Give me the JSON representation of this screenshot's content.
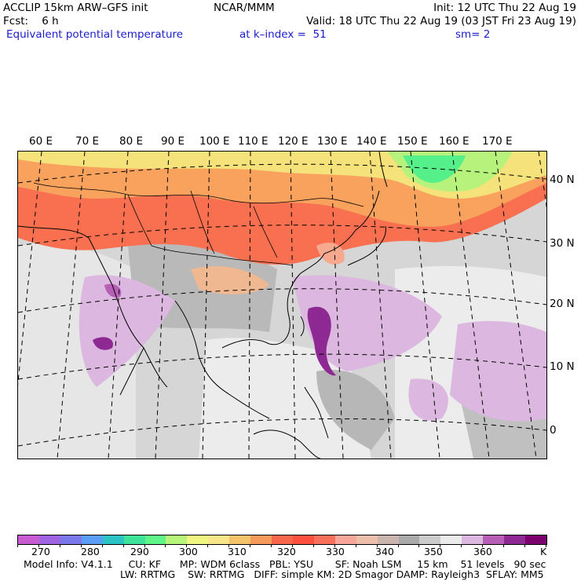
{
  "header": {
    "line1_left": "ACCLIP 15km ARW–GFS init",
    "line1_center": "NCAR/MMM",
    "line1_right": "Init: 12 UTC Thu 22 Aug 19",
    "line2_left": "Fcst:    6 h",
    "line2_right": "Valid: 18 UTC Thu 22 Aug 19 (03 JST Fri 23 Aug 19)",
    "line3_left": "Equivalent potential temperature",
    "line3_center": "at k–index =  51",
    "line3_right": "sm= 2"
  },
  "map": {
    "lon_labels": [
      "60 E",
      "70 E",
      "80 E",
      "90 E",
      "100 E",
      "110 E",
      "120 E",
      "130 E",
      "140 E",
      "150 E",
      "160 E",
      "170 E"
    ],
    "lat_labels": [
      "40 N",
      "30 N",
      "20 N",
      "10 N",
      "0"
    ]
  },
  "colorbar": {
    "colors": [
      "#c85ad2",
      "#a064e1",
      "#7a78ea",
      "#5a9df5",
      "#2bc3c3",
      "#3ee39a",
      "#5ff588",
      "#b6f57a",
      "#f1f582",
      "#f9e58a",
      "#f6c36d",
      "#f59a5a",
      "#f7664a",
      "#ff5040",
      "#f8705a",
      "#f8a59a",
      "#edbfaa",
      "#c9b5ad",
      "#aaaaaa",
      "#cccccc",
      "#ececec",
      "#dcb8e0",
      "#b75fb7",
      "#8e2993",
      "#7a0070"
    ],
    "labels": [
      "270",
      "280",
      "290",
      "300",
      "310",
      "320",
      "330",
      "340",
      "350",
      "360"
    ],
    "unit": "K"
  },
  "footer": {
    "line1": "Model Info: V4.1.1     CU: KF      MP: WDM 6class   PBL: YSU       SF: Noah LSM     15 km    51 levels   90 sec",
    "line2": "LW: RRTMG    SW: RRTMG   DIFF: simple KM: 2D Smagor DAMP: Rayleigh3  SFLAY: MM5"
  }
}
